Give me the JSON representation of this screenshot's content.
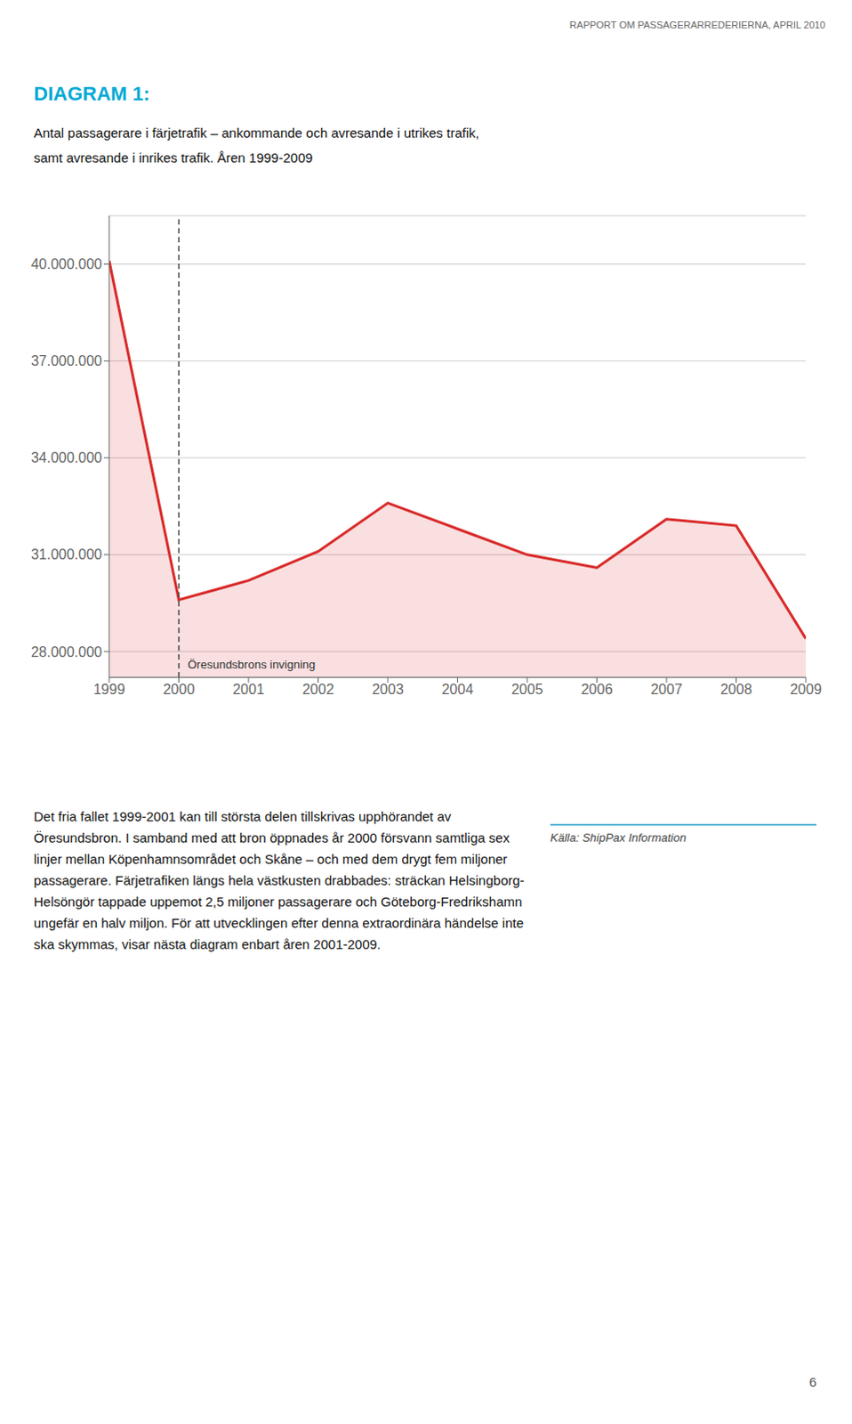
{
  "chart_data": {
    "type": "area",
    "header": "RAPPORT OM PASSAGERARREDERIERNA, APRIL 2010",
    "title": "DIAGRAM 1:",
    "subtitle": [
      "Antal passagerare i färjetrafik – ankommande och avresande i utrikes trafik,",
      "samt avresande i inrikes trafik. Åren 1999-2009"
    ],
    "x": [
      1999,
      2000,
      2001,
      2002,
      2003,
      2004,
      2005,
      2006,
      2007,
      2008,
      2009
    ],
    "values": [
      40100000,
      29600000,
      30200000,
      31100000,
      32600000,
      31800000,
      31000000,
      30600000,
      32100000,
      31900000,
      28400000
    ],
    "color": "#d92b2b",
    "xlim": [
      1999,
      2009
    ],
    "xticks": [
      1999,
      2000,
      2001,
      2002,
      2003,
      2004,
      2005,
      2006,
      2007,
      2008,
      2009
    ],
    "ylim": [
      27200000,
      41500000
    ],
    "yticks": [
      {
        "value": 28000000,
        "label": "28.000.000"
      },
      {
        "value": 31000000,
        "label": "31.000.000"
      },
      {
        "value": 34000000,
        "label": "34.000.000"
      },
      {
        "value": 37000000,
        "label": "37.000.000"
      },
      {
        "value": 40000000,
        "label": "40.000.000"
      }
    ],
    "grid": true,
    "annotations": [
      {
        "x": 2000,
        "text": "Öresundsbrons invigning",
        "line_style": "dashed"
      }
    ],
    "body_text": "Det fria fallet 1999-2001 kan till största delen tillskrivas upphörandet av Öresundsbron. I samband med att bron öppnades år 2000 försvann samtliga sex linjer mellan Köpenhamnsområdet och Skåne – och med dem drygt fem miljoner passagerare. Färjetrafiken längs hela västkusten drabbades: sträckan Helsingborg-Helsöngör tappade uppemot 2,5 miljoner passagerare och Göteborg-Fredrikshamn ungefär en halv miljon. För att utvecklingen efter denna extraordinära händelse inte ska skymmas, visar nästa diagram enbart åren 2001-2009.",
    "source": "Källa: ShipPax Information",
    "page_number": "6"
  }
}
